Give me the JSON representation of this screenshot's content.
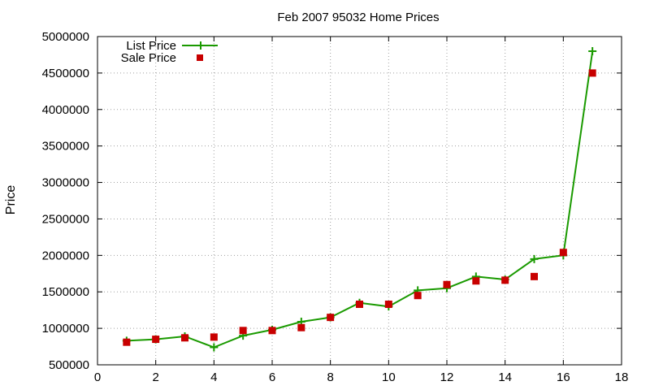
{
  "chart_data": {
    "type": "line",
    "title": "Feb 2007 95032 Home Prices",
    "xlabel": "",
    "ylabel": "Price",
    "xlim": [
      0,
      18
    ],
    "ylim": [
      500000,
      5000000
    ],
    "xticks": [
      0,
      2,
      4,
      6,
      8,
      10,
      12,
      14,
      16,
      18
    ],
    "yticks": [
      500000,
      1000000,
      1500000,
      2000000,
      2500000,
      3000000,
      3500000,
      4000000,
      4500000,
      5000000
    ],
    "grid": true,
    "legend_position": "top-left",
    "series": [
      {
        "name": "List Price",
        "style": "line-with-plus-markers",
        "color": "#1a9a00",
        "x": [
          1,
          2,
          3,
          4,
          5,
          6,
          7,
          8,
          9,
          10,
          11,
          12,
          13,
          14,
          15,
          16,
          17
        ],
        "values": [
          830000,
          850000,
          890000,
          740000,
          900000,
          980000,
          1090000,
          1150000,
          1350000,
          1300000,
          1520000,
          1550000,
          1710000,
          1670000,
          1950000,
          2000000,
          4800000
        ]
      },
      {
        "name": "Sale Price",
        "style": "square-markers",
        "color": "#c80000",
        "x": [
          1,
          2,
          3,
          4,
          5,
          6,
          7,
          8,
          9,
          10,
          11,
          12,
          13,
          14,
          15,
          16,
          17
        ],
        "values": [
          810000,
          850000,
          870000,
          880000,
          970000,
          970000,
          1010000,
          1150000,
          1330000,
          1330000,
          1450000,
          1600000,
          1650000,
          1660000,
          1710000,
          2040000,
          4500000
        ]
      }
    ]
  }
}
